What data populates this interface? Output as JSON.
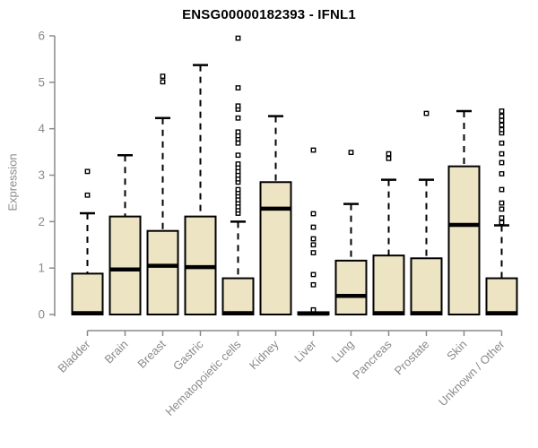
{
  "title": "ENSG00000182393 - IFNL1",
  "chart_data": {
    "type": "box",
    "title": "ENSG00000182393 - IFNL1",
    "ylabel": "Expression",
    "xlabel": "",
    "ylim": [
      0,
      6
    ],
    "yticks": [
      0,
      1,
      2,
      3,
      4,
      5,
      6
    ],
    "grid": false,
    "legend": false,
    "categories": [
      "Bladder",
      "Brain",
      "Breast",
      "Gastric",
      "Hematopoietic cells",
      "Kidney",
      "Liver",
      "Lung",
      "Pancreas",
      "Prostate",
      "Skin",
      "Unknown / Other"
    ],
    "boxes": [
      {
        "category": "Bladder",
        "whisker_low": 0,
        "q1": 0,
        "median": 0.03,
        "q3": 0.88,
        "whisker_high": 2.18,
        "outliers": [
          2.57,
          3.08
        ]
      },
      {
        "category": "Brain",
        "whisker_low": 0,
        "q1": 0,
        "median": 0.97,
        "q3": 2.11,
        "whisker_high": 3.43,
        "outliers": []
      },
      {
        "category": "Breast",
        "whisker_low": 0,
        "q1": 0,
        "median": 1.05,
        "q3": 1.8,
        "whisker_high": 4.23,
        "outliers": [
          5.01,
          5.13
        ]
      },
      {
        "category": "Gastric",
        "whisker_low": 0,
        "q1": 0,
        "median": 1.02,
        "q3": 2.11,
        "whisker_high": 5.37,
        "outliers": []
      },
      {
        "category": "Hematopoietic cells",
        "whisker_low": 0,
        "q1": 0,
        "median": 0.03,
        "q3": 0.78,
        "whisker_high": 2.0,
        "outliers": [
          2.18,
          2.25,
          2.32,
          2.4,
          2.47,
          2.55,
          2.62,
          2.69,
          2.85,
          2.92,
          3.0,
          3.08,
          3.16,
          3.24,
          3.43,
          3.69,
          3.78,
          3.85,
          3.93,
          4.23,
          4.42,
          4.49,
          4.88,
          5.95
        ]
      },
      {
        "category": "Kidney",
        "whisker_low": 0,
        "q1": 0,
        "median": 2.28,
        "q3": 2.85,
        "whisker_high": 4.27,
        "outliers": []
      },
      {
        "category": "Liver",
        "whisker_low": 0,
        "q1": 0,
        "median": 0.02,
        "q3": 0.05,
        "whisker_high": 0.05,
        "outliers": [
          0.1,
          0.64,
          0.86,
          1.33,
          1.5,
          1.63,
          1.88,
          2.17,
          3.54
        ]
      },
      {
        "category": "Lung",
        "whisker_low": 0,
        "q1": 0,
        "median": 0.4,
        "q3": 1.16,
        "whisker_high": 2.38,
        "outliers": [
          3.49
        ]
      },
      {
        "category": "Pancreas",
        "whisker_low": 0,
        "q1": 0,
        "median": 0.03,
        "q3": 1.27,
        "whisker_high": 2.9,
        "outliers": [
          3.36,
          3.46
        ]
      },
      {
        "category": "Prostate",
        "whisker_low": 0,
        "q1": 0,
        "median": 0.03,
        "q3": 1.21,
        "whisker_high": 2.9,
        "outliers": [
          4.33
        ]
      },
      {
        "category": "Skin",
        "whisker_low": 0,
        "q1": 0,
        "median": 1.93,
        "q3": 3.19,
        "whisker_high": 4.38,
        "outliers": []
      },
      {
        "category": "Unknown / Other",
        "whisker_low": 0,
        "q1": 0,
        "median": 0.03,
        "q3": 0.78,
        "whisker_high": 1.92,
        "outliers": [
          1.98,
          2.08,
          2.27,
          2.4,
          2.69,
          3.03,
          3.27,
          3.46,
          3.69,
          3.91,
          3.98,
          4.08,
          4.18,
          4.27,
          4.38
        ]
      }
    ],
    "colors": {
      "box_fill": "#EDE4C4",
      "box_border": "#000000",
      "median": "#000000",
      "whisker": "#000000",
      "outlier_stroke": "#000000",
      "outlier_fill": "#FFFFFF",
      "axis": "#8a8a8a",
      "tick_label": "#8a8a8a",
      "title": "#000000",
      "background": "#FFFFFF"
    }
  }
}
